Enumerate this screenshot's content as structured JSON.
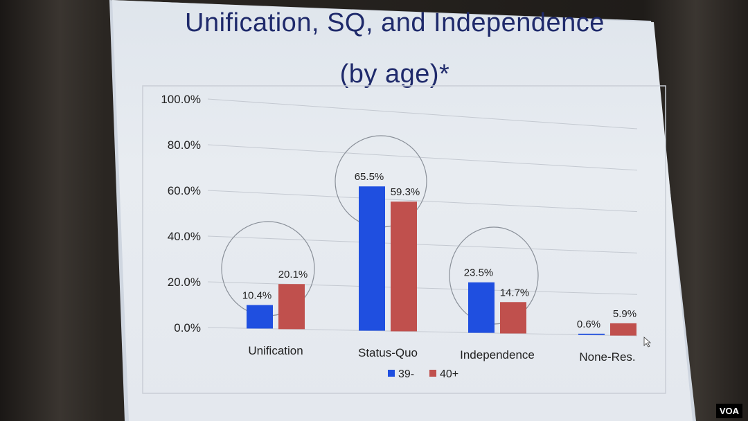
{
  "chart_data": {
    "type": "bar",
    "title": "Unification, SQ, and Independence",
    "subtitle": "(by age)*",
    "categories": [
      "Unification",
      "Status-Quo",
      "Independence",
      "None-Res."
    ],
    "series": [
      {
        "name": "39-",
        "values": [
          10.4,
          65.5,
          23.5,
          0.6
        ],
        "labels": [
          "10.4%",
          "65.5%",
          "23.5%",
          "0.6%"
        ],
        "color": "#1f4fe0"
      },
      {
        "name": "40+",
        "values": [
          20.1,
          59.3,
          14.7,
          5.9
        ],
        "labels": [
          "20.1%",
          "59.3%",
          "14.7%",
          "5.9%"
        ],
        "color": "#c0504d"
      }
    ],
    "yticks": [
      "0.0%",
      "20.0%",
      "40.0%",
      "60.0%",
      "80.0%",
      "100.0%"
    ],
    "ylim": [
      0,
      100
    ],
    "grid": true,
    "legend": "bottom",
    "annotations": "circles around Unification, Status-Quo and Independence bar pairs"
  },
  "watermark": "VOA"
}
